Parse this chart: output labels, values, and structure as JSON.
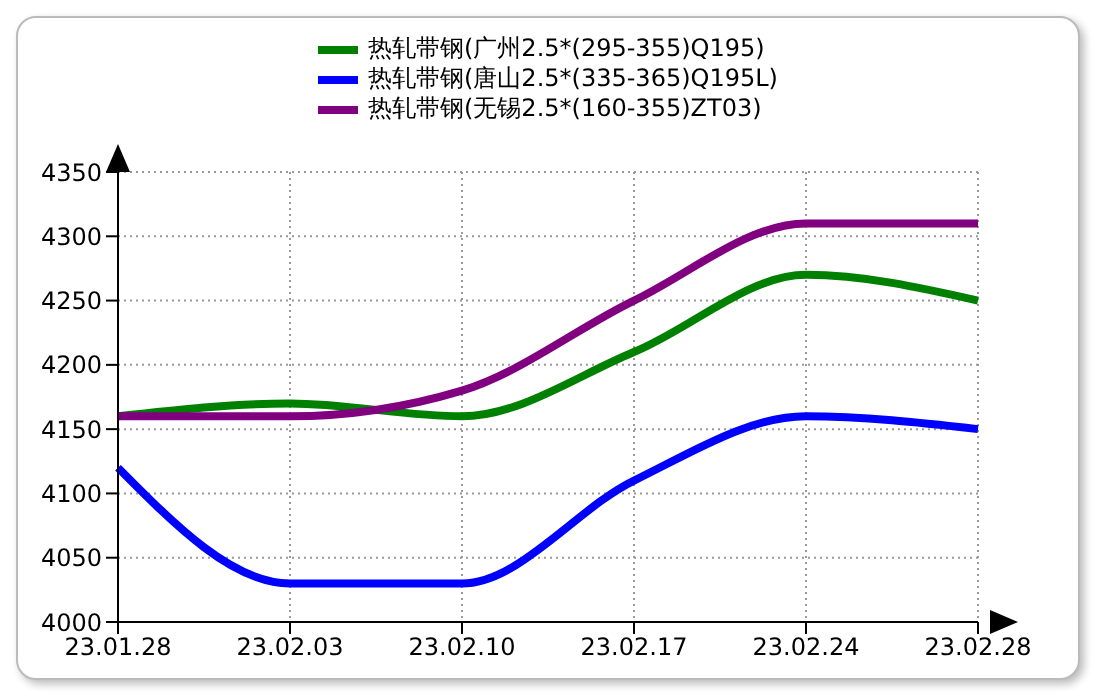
{
  "chart_data": {
    "type": "line",
    "categories": [
      "23.01.28",
      "23.02.03",
      "23.02.10",
      "23.02.17",
      "23.02.24",
      "23.02.28"
    ],
    "series": [
      {
        "name": "热轧带钢(广州2.5*(295-355)Q195)",
        "color": "#008000",
        "values": [
          4160,
          4170,
          4160,
          4210,
          4270,
          4250
        ]
      },
      {
        "name": "热轧带钢(唐山2.5*(335-365)Q195L)",
        "color": "#0000ff",
        "values": [
          4120,
          4030,
          4030,
          4110,
          4160,
          4150
        ]
      },
      {
        "name": "热轧带钢(无锡2.5*(160-355)ZT03)",
        "color": "#800080",
        "values": [
          4160,
          4160,
          4180,
          4250,
          4310,
          4310
        ]
      }
    ],
    "ylim": [
      4000,
      4350
    ],
    "yticks": [
      4000,
      4050,
      4100,
      4150,
      4200,
      4250,
      4300,
      4350
    ],
    "grid": true,
    "legend": "top",
    "marker": "none",
    "line_style": "solid"
  }
}
